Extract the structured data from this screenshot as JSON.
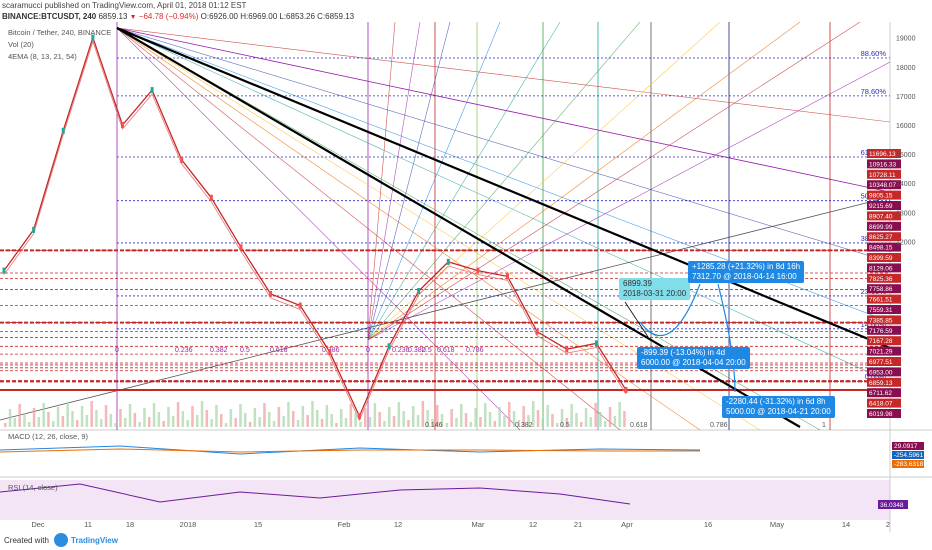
{
  "header": {
    "line1": "scaramucci published on TradingView.com, April 01, 2018 01:12 EST",
    "symbol": "BINANCE:BTCUSDT, 240",
    "last": "6859.13",
    "change": "−64.78 (−0.94%)",
    "ohlc": "O:6926.00 H:6969.00 L:6853.26 C:6859.13"
  },
  "legend": {
    "title": "Bitcoin / Tether, 240, BINANCE",
    "vol": "Vol (20)",
    "ema": "4EMA (8, 13, 21, 54)",
    "macd": "MACD (12, 26, close, 9)",
    "rsi": "RSI (14, close)"
  },
  "footer": {
    "made": "Created with",
    "brand": "TradingView"
  },
  "colors": {
    "up": "#26a69a",
    "down": "#ef5350",
    "fib": "#2b2bbf",
    "trend": "#000000",
    "hline": "#c62828",
    "fan": "#9c27b0"
  },
  "tooltips": {
    "t1": "6899.39",
    "t1b": "2018-03-31 20:00",
    "t2": "+1285.28 (+21.32%) in 8d 16h",
    "t2b": "7312.70 @ 2018-04-14 16:00",
    "t3": "-899.39 (-13.04%) in 4d",
    "t3b": "6000.00 @ 2018-04-04 20:00",
    "t4": "-2280.44 (-31.32%) in 6d 8h",
    "t4b": "5000.00 @ 2018-04-21 20:00"
  },
  "chart_data": {
    "type": "line",
    "title": "Bitcoin / Tether, 240, BINANCE",
    "x_ticks": [
      "Dec",
      "11",
      "18",
      "2018",
      "15",
      "Feb",
      "12",
      "Mar",
      "12",
      "21",
      "Apr",
      "16",
      "May",
      "14",
      "2"
    ],
    "y_ticks": [
      19000,
      18000,
      17000,
      16000,
      15000,
      14000,
      13000,
      12000
    ],
    "y_right_labels": [
      "11696.13",
      "10916.33",
      "10728.11",
      "10348.07",
      "9805.15",
      "9215.69",
      "8907.40",
      "8699.99",
      "8625.27",
      "8498.15",
      "8399.59",
      "8129.06",
      "7825.36",
      "7758.86",
      "7661.51",
      "7559.31",
      "7385.85",
      "7176.59",
      "7167.28",
      "7021.29",
      "6977.51",
      "6953.00",
      "6859.13",
      "6711.62",
      "6418.07",
      "6019.98"
    ],
    "fib_levels": [
      {
        "label": "88.60%",
        "price": 18300
      },
      {
        "label": "78.60%",
        "price": 17000
      },
      {
        "label": "61.80%",
        "price": 14900
      },
      {
        "label": "50.00%",
        "price": 13400
      },
      {
        "label": "38.20%",
        "price": 11950
      },
      {
        "label": "23.60%",
        "price": 10130
      },
      {
        "label": "14.60%",
        "price": 9000
      },
      {
        "label": "0.00%",
        "price": 7200
      }
    ],
    "fan_labels_left": [
      "0",
      "0.236",
      "0.382",
      "0.5",
      "0.618",
      "0.786"
    ],
    "fan_labels_mid": [
      "0",
      "0.236",
      "0.382",
      "0.5",
      "0.618",
      "0.786"
    ],
    "fan_labels_bottom": [
      "0.146",
      "0.382",
      "0.5",
      "0.618",
      "0.786",
      "1"
    ],
    "series": [
      {
        "name": "BTCUSDT",
        "values": [
          11000,
          12400,
          15800,
          19000,
          16000,
          17200,
          14800,
          13500,
          11800,
          10200,
          9800,
          8200,
          6000,
          8400,
          10300,
          11300,
          11000,
          10800,
          8900,
          8300,
          8500,
          6900
        ]
      }
    ],
    "ylim": [
      5800,
      19400
    ],
    "macd_labels": [
      "29.0917",
      "-254.5961",
      "-283.6318"
    ],
    "rsi_label": "36.0348"
  }
}
